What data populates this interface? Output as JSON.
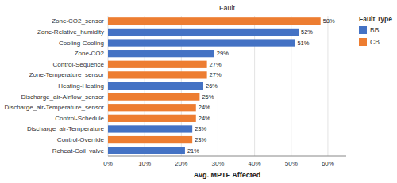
{
  "chart_data": {
    "type": "bar",
    "orientation": "horizontal",
    "title": "Fault",
    "x_label": "Avg. MPTF Affected",
    "legend_title": "Fault Type",
    "legend": "right",
    "grid": true,
    "data_labels": true,
    "categories": [
      "Zone-CO2_sensor",
      "Zone-Relative_humidity",
      "Cooling-Cooling",
      "Zone-CO2",
      "Control-Sequence",
      "Zone-Temperature_sensor",
      "Heating-Heating",
      "Discharge_air-Airflow_sensor",
      "Discharge_air-Temperature_sensor",
      "Control-Schedule",
      "Discharge_air-Temperature",
      "Control-Override",
      "Reheat-Coil_valve"
    ],
    "series": [
      {
        "name": "BB",
        "color": "#4472C4",
        "values": [
          null,
          52,
          51,
          29,
          null,
          null,
          26,
          null,
          null,
          null,
          23,
          null,
          21
        ],
        "value_labels": [
          null,
          "52%",
          "51%",
          "29%",
          null,
          null,
          "26%",
          null,
          null,
          null,
          "23%",
          null,
          "21%"
        ]
      },
      {
        "name": "CB",
        "color": "#ED7D31",
        "values": [
          58,
          null,
          null,
          null,
          27,
          27,
          null,
          25,
          24,
          24,
          null,
          23,
          null
        ],
        "value_labels": [
          "58%",
          null,
          null,
          null,
          "27%",
          "27%",
          null,
          "25%",
          "24%",
          "24%",
          null,
          "23%",
          null
        ]
      }
    ],
    "xlim": [
      0,
      65
    ],
    "xticks": [
      {
        "value": 0,
        "label": "0%"
      },
      {
        "value": 10,
        "label": "10%"
      },
      {
        "value": 20,
        "label": "20%"
      },
      {
        "value": 30,
        "label": "30%"
      },
      {
        "value": 40,
        "label": "40%"
      },
      {
        "value": 50,
        "label": "50%"
      },
      {
        "value": 60,
        "label": "60%"
      }
    ]
  }
}
